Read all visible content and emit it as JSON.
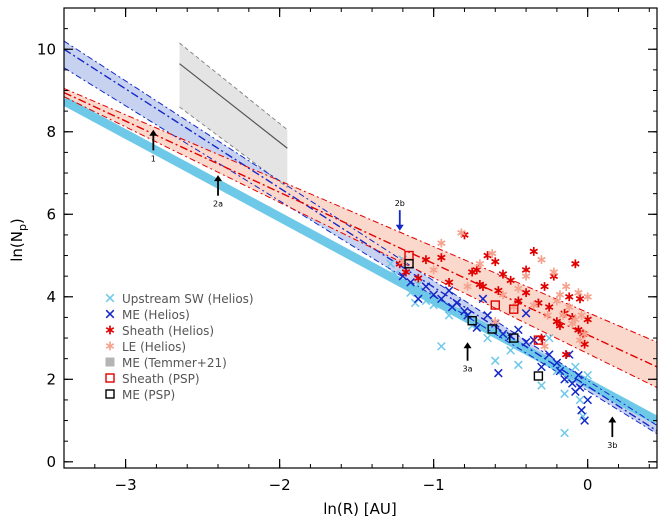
{
  "chart_data": {
    "type": "scatter",
    "xlabel": "ln(R)  [AU]",
    "ylabel_main": "ln(N",
    "ylabel_sub": "p",
    "ylabel_close": ")",
    "xlim": [
      -3.4,
      0.45
    ],
    "ylim": [
      -0.15,
      11.0
    ],
    "xticks": [
      {
        "v": -3,
        "label": "−3"
      },
      {
        "v": -2,
        "label": "−2"
      },
      {
        "v": -1,
        "label": "−1"
      },
      {
        "v": 0,
        "label": "0"
      }
    ],
    "yticks": [
      {
        "v": 0,
        "label": "0"
      },
      {
        "v": 2,
        "label": "2"
      },
      {
        "v": 4,
        "label": "4"
      },
      {
        "v": 6,
        "label": "6"
      },
      {
        "v": 8,
        "label": "8"
      },
      {
        "v": 10,
        "label": "10"
      }
    ],
    "colors": {
      "upstream": "#6ec8e8",
      "me_helios": "#1428c8",
      "sheath_helios": "#e00000",
      "le_helios": "#f5a38f",
      "band_blue": "#c7d2f0",
      "band_red": "#fbd8cc",
      "band_gray": "#e4e4e4",
      "psp_sheath": "#e00000",
      "psp_me": "#000000"
    },
    "fits": {
      "upstream_thick": {
        "x": [
          -3.4,
          0.45
        ],
        "y": [
          8.75,
          1.0
        ]
      },
      "me_band": {
        "x": [
          -3.4,
          0.45
        ],
        "y_center": [
          10.0,
          0.75
        ],
        "y_low": [
          9.55,
          0.68
        ],
        "y_high": [
          10.2,
          0.88
        ]
      },
      "sheath_band": {
        "x": [
          -3.4,
          0.45
        ],
        "y_center": [
          8.95,
          2.3
        ],
        "y_low": [
          8.85,
          1.8
        ],
        "y_high": [
          9.05,
          2.9
        ]
      },
      "temmer21": {
        "x": [
          -2.65,
          -1.95
        ],
        "y_center": [
          9.65,
          7.6
        ],
        "y_low": [
          8.6,
          6.65
        ],
        "y_high": [
          10.15,
          8.05
        ]
      }
    },
    "series": [
      {
        "name": "Upstream SW (Helios)",
        "marker": "x",
        "color": "#6ec8e8",
        "points": [
          [
            -1.28,
            4.8
          ],
          [
            -1.25,
            4.55
          ],
          [
            -1.2,
            4.9
          ],
          [
            -1.15,
            4.1
          ],
          [
            -1.12,
            3.85
          ],
          [
            -1.1,
            4.3
          ],
          [
            -1.05,
            3.9
          ],
          [
            -1.0,
            3.8
          ],
          [
            -0.95,
            2.8
          ],
          [
            -0.9,
            3.55
          ],
          [
            -0.85,
            3.65
          ],
          [
            -0.75,
            3.3
          ],
          [
            -0.65,
            3.0
          ],
          [
            -0.6,
            2.45
          ],
          [
            -0.5,
            2.7
          ],
          [
            -0.45,
            2.35
          ],
          [
            -0.3,
            1.85
          ],
          [
            -0.25,
            3.0
          ],
          [
            -0.2,
            2.2
          ],
          [
            -0.15,
            1.65
          ],
          [
            -0.12,
            2.0
          ],
          [
            -0.08,
            2.3
          ],
          [
            -0.05,
            1.5
          ],
          [
            -0.03,
            1.1
          ],
          [
            -0.15,
            0.7
          ],
          [
            0.0,
            2.1
          ]
        ]
      },
      {
        "name": "ME (Helios)",
        "marker": "x",
        "color": "#1428c8",
        "points": [
          [
            -1.2,
            4.5
          ],
          [
            -1.15,
            4.35
          ],
          [
            -1.1,
            3.95
          ],
          [
            -1.05,
            4.25
          ],
          [
            -1.0,
            4.05
          ],
          [
            -0.95,
            3.95
          ],
          [
            -0.9,
            4.15
          ],
          [
            -0.85,
            3.85
          ],
          [
            -0.8,
            3.65
          ],
          [
            -0.78,
            3.55
          ],
          [
            -0.72,
            3.25
          ],
          [
            -0.65,
            3.55
          ],
          [
            -0.6,
            3.35
          ],
          [
            -0.55,
            3.1
          ],
          [
            -0.5,
            3.05
          ],
          [
            -0.45,
            3.2
          ],
          [
            -0.4,
            2.9
          ],
          [
            -0.35,
            2.95
          ],
          [
            -0.3,
            2.3
          ],
          [
            -0.25,
            2.6
          ],
          [
            -0.2,
            2.4
          ],
          [
            -0.18,
            2.2
          ],
          [
            -0.15,
            2.0
          ],
          [
            -0.12,
            2.6
          ],
          [
            -0.1,
            1.9
          ],
          [
            -0.08,
            1.7
          ],
          [
            -0.06,
            2.1
          ],
          [
            -0.05,
            1.8
          ],
          [
            -0.04,
            1.25
          ],
          [
            -0.02,
            1.0
          ],
          [
            0.0,
            1.5
          ],
          [
            -0.58,
            2.15
          ],
          [
            -0.4,
            3.6
          ],
          [
            -0.68,
            3.95
          ],
          [
            -0.88,
            3.75
          ]
        ]
      },
      {
        "name": "Sheath (Helios)",
        "marker": "asterisk",
        "color": "#e00000",
        "points": [
          [
            -1.22,
            4.8
          ],
          [
            -1.18,
            4.6
          ],
          [
            -1.1,
            4.45
          ],
          [
            -1.05,
            4.9
          ],
          [
            -0.95,
            4.95
          ],
          [
            -0.9,
            4.35
          ],
          [
            -0.8,
            5.5
          ],
          [
            -0.75,
            4.6
          ],
          [
            -0.72,
            4.65
          ],
          [
            -0.7,
            4.3
          ],
          [
            -0.65,
            5.0
          ],
          [
            -0.6,
            4.85
          ],
          [
            -0.55,
            4.55
          ],
          [
            -0.5,
            4.4
          ],
          [
            -0.45,
            3.9
          ],
          [
            -0.4,
            4.1
          ],
          [
            -0.35,
            5.1
          ],
          [
            -0.3,
            3.0
          ],
          [
            -0.28,
            4.25
          ],
          [
            -0.25,
            3.75
          ],
          [
            -0.22,
            4.5
          ],
          [
            -0.2,
            3.4
          ],
          [
            -0.18,
            3.3
          ],
          [
            -0.15,
            3.6
          ],
          [
            -0.12,
            4.0
          ],
          [
            -0.1,
            3.5
          ],
          [
            -0.08,
            4.8
          ],
          [
            -0.06,
            3.2
          ],
          [
            -0.05,
            3.95
          ],
          [
            -0.03,
            3.1
          ],
          [
            -0.02,
            2.85
          ],
          [
            0.0,
            3.45
          ],
          [
            -0.14,
            2.6
          ],
          [
            -0.32,
            3.85
          ],
          [
            -0.58,
            4.15
          ],
          [
            -0.4,
            4.65
          ],
          [
            -0.68,
            4.25
          ]
        ]
      },
      {
        "name": "LE (Helios)",
        "marker": "asterisk",
        "color": "#f5a38f",
        "points": [
          [
            -1.2,
            4.85
          ],
          [
            -1.0,
            4.65
          ],
          [
            -0.95,
            5.3
          ],
          [
            -0.82,
            5.55
          ],
          [
            -0.78,
            4.25
          ],
          [
            -0.7,
            4.8
          ],
          [
            -0.62,
            5.05
          ],
          [
            -0.55,
            4.05
          ],
          [
            -0.48,
            3.75
          ],
          [
            -0.45,
            4.2
          ],
          [
            -0.4,
            4.5
          ],
          [
            -0.35,
            3.8
          ],
          [
            -0.3,
            4.9
          ],
          [
            -0.26,
            3.55
          ],
          [
            -0.22,
            4.6
          ],
          [
            -0.2,
            3.9
          ],
          [
            -0.18,
            4.05
          ],
          [
            -0.16,
            3.55
          ],
          [
            -0.14,
            4.25
          ],
          [
            -0.12,
            3.75
          ],
          [
            -0.1,
            3.35
          ],
          [
            -0.08,
            3.45
          ],
          [
            -0.06,
            4.1
          ],
          [
            -0.05,
            2.95
          ],
          [
            -0.04,
            3.55
          ],
          [
            -0.02,
            3.1
          ],
          [
            0.0,
            4.0
          ],
          [
            -0.6,
            3.4
          ],
          [
            -0.28,
            2.8
          ]
        ]
      },
      {
        "name": "ME (Temmer+21)",
        "marker": "square-filled",
        "color": "#b4b4b4",
        "points": []
      },
      {
        "name": "Sheath (PSP)",
        "marker": "square",
        "color": "#e00000",
        "points": [
          [
            -1.16,
            5.0
          ],
          [
            -0.6,
            3.8
          ],
          [
            -0.48,
            3.7
          ],
          [
            -0.32,
            2.95
          ]
        ]
      },
      {
        "name": "ME (PSP)",
        "marker": "square",
        "color": "#000000",
        "points": [
          [
            -1.16,
            4.8
          ],
          [
            -0.75,
            3.42
          ],
          [
            -0.62,
            3.22
          ],
          [
            -0.48,
            3.0
          ],
          [
            -0.32,
            2.08
          ]
        ]
      }
    ],
    "annotations": [
      {
        "label": "1",
        "x": -2.82,
        "y_tail": 7.55,
        "y_head": 8.0,
        "direction": "up",
        "color": "#000000"
      },
      {
        "label": "2a",
        "x": -2.4,
        "y_tail": 6.45,
        "y_head": 6.9,
        "direction": "up",
        "color": "#000000"
      },
      {
        "label": "2b",
        "x": -1.22,
        "y_tail": 6.1,
        "y_head": 5.65,
        "direction": "down",
        "color": "#1428c8"
      },
      {
        "label": "3a",
        "x": -0.78,
        "y_tail": 2.45,
        "y_head": 2.85,
        "direction": "up",
        "color": "#000000"
      },
      {
        "label": "3b",
        "x": 0.16,
        "y_tail": 0.6,
        "y_head": 1.05,
        "direction": "up",
        "color": "#000000"
      }
    ]
  }
}
